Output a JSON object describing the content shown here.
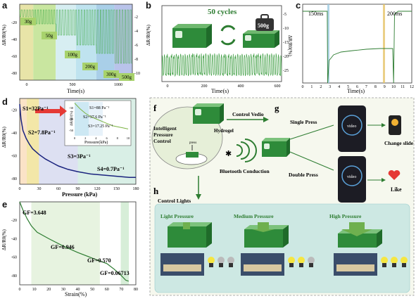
{
  "panels": {
    "a": {
      "label": "a",
      "xlabel": "Time(s)",
      "ylabel": "ΔR/R0(%)",
      "yticks_left": [
        "-20",
        "-40",
        "-60",
        "-80"
      ],
      "yticks_right": [
        "-2",
        "-4",
        "-6",
        "-8",
        "-10"
      ],
      "xticks": [
        "0",
        "500",
        "1000"
      ],
      "loads": [
        "30g",
        "50g",
        "100g",
        "200g",
        "300g",
        "500g"
      ],
      "load_colors": [
        "#e8e4a8",
        "#c9e6a0",
        "#d7eef2",
        "#bfe3ef",
        "#a9cfe8",
        "#b9c3ea"
      ]
    },
    "b": {
      "label": "b",
      "title": "50 cycles",
      "weight": "500g",
      "xlabel": "Time(s)",
      "ylabel": "ΔR/R0(%)",
      "yticks": [
        "-5",
        "-10",
        "-15",
        "-20",
        "-25"
      ],
      "xticks": [
        "0",
        "200",
        "400",
        "600"
      ]
    },
    "c": {
      "label": "c",
      "ann1": "150ms",
      "ann2": "200ms",
      "xlabel": "Time(s)",
      "xticks": [
        "0",
        "1",
        "2",
        "3",
        "4",
        "5",
        "6",
        "7",
        "8",
        "9",
        "10",
        "11",
        "12"
      ]
    },
    "d": {
      "label": "d",
      "xlabel": "Pressure (kPa)",
      "ylabel": "ΔR/R0(%)",
      "xticks": [
        "0",
        "30",
        "60",
        "90",
        "120",
        "150",
        "180"
      ],
      "yticks": [
        "-20",
        "-40",
        "-60",
        "-80"
      ],
      "s1": "S1=32Pa⁻¹",
      "s2": "S2=7.8Pa⁻¹",
      "s3": "S3=3Pa⁻¹",
      "s4": "S4=0.7Pa⁻¹",
      "inset": {
        "ylabel": "ΔR/R0(%)",
        "xlabel": "Pressure(kPa)",
        "xticks": [
          "0",
          "2",
          "4",
          "6",
          "8",
          "10"
        ],
        "yticks": [
          "-30",
          "-40",
          "-50"
        ],
        "t1": "S1=88 Pa⁻¹",
        "t2": "S2=37.6 Pa⁻¹",
        "t3": "S3=17.25 Pa⁻¹"
      }
    },
    "e": {
      "label": "e",
      "xlabel": "Strain(%)",
      "ylabel": "ΔR/R0(%)",
      "xticks": [
        "0",
        "10",
        "20",
        "30",
        "40",
        "50",
        "60",
        "70",
        "80"
      ],
      "yticks": [
        "-20",
        "-40",
        "-60",
        "-80"
      ],
      "gf1": "GF=3.648",
      "gf2": "GF=0.946",
      "gf3": "GF=0.570",
      "gf4": "GF=0.06713"
    },
    "f": {
      "label": "f",
      "hydrogel": "Hydrogel",
      "control_text": "Intelligent Pressure Control",
      "press": "press",
      "control_video": "Control Vedio",
      "bluetooth": "Bluetooth Conduction",
      "control_lights": "Control Lights"
    },
    "g": {
      "label": "g",
      "single": "Single Press",
      "double": "Double Press",
      "video": "video",
      "change": "Change slide",
      "like": "Like"
    },
    "h": {
      "label": "h",
      "light": "Light Pressure",
      "medium": "Medium Pressure",
      "high": "High Pressure"
    }
  },
  "chart_data": [
    {
      "type": "line",
      "panel": "d",
      "title": "",
      "xlabel": "Pressure (kPa)",
      "ylabel": "ΔR/R0(%)",
      "xlim": [
        0,
        180
      ],
      "ylim": [
        -85,
        -10
      ],
      "x": [
        0,
        2,
        5,
        10,
        15,
        20,
        30,
        40,
        50,
        60,
        75,
        90,
        110,
        130,
        150,
        170,
        180
      ],
      "values": [
        -15,
        -28,
        -38,
        -45,
        -50,
        -54,
        -59,
        -63,
        -66,
        -69,
        -72,
        -74,
        -76,
        -77,
        -78,
        -79,
        -79
      ]
    },
    {
      "type": "line",
      "panel": "e",
      "title": "",
      "xlabel": "Strain(%)",
      "ylabel": "ΔR/R0(%)",
      "xlim": [
        0,
        80
      ],
      "ylim": [
        -90,
        0
      ],
      "x": [
        0,
        2,
        5,
        8,
        12,
        20,
        30,
        40,
        50,
        55,
        60,
        65,
        70,
        73,
        75
      ],
      "values": [
        0,
        -8,
        -18,
        -26,
        -33,
        -40,
        -48,
        -55,
        -61,
        -64,
        -67,
        -73,
        -80,
        -85,
        -86
      ]
    },
    {
      "type": "line",
      "panel": "d-inset",
      "title": "",
      "xlabel": "Pressure(kPa)",
      "ylabel": "ΔR/R0(%)",
      "xlim": [
        0,
        10
      ],
      "ylim": [
        -55,
        -25
      ],
      "x": [
        0,
        1,
        2,
        3,
        4,
        5,
        6,
        7,
        8,
        9,
        10
      ],
      "values": [
        -26,
        -31,
        -35,
        -38,
        -40,
        -42,
        -44,
        -46,
        -47,
        -48,
        -49
      ]
    }
  ]
}
